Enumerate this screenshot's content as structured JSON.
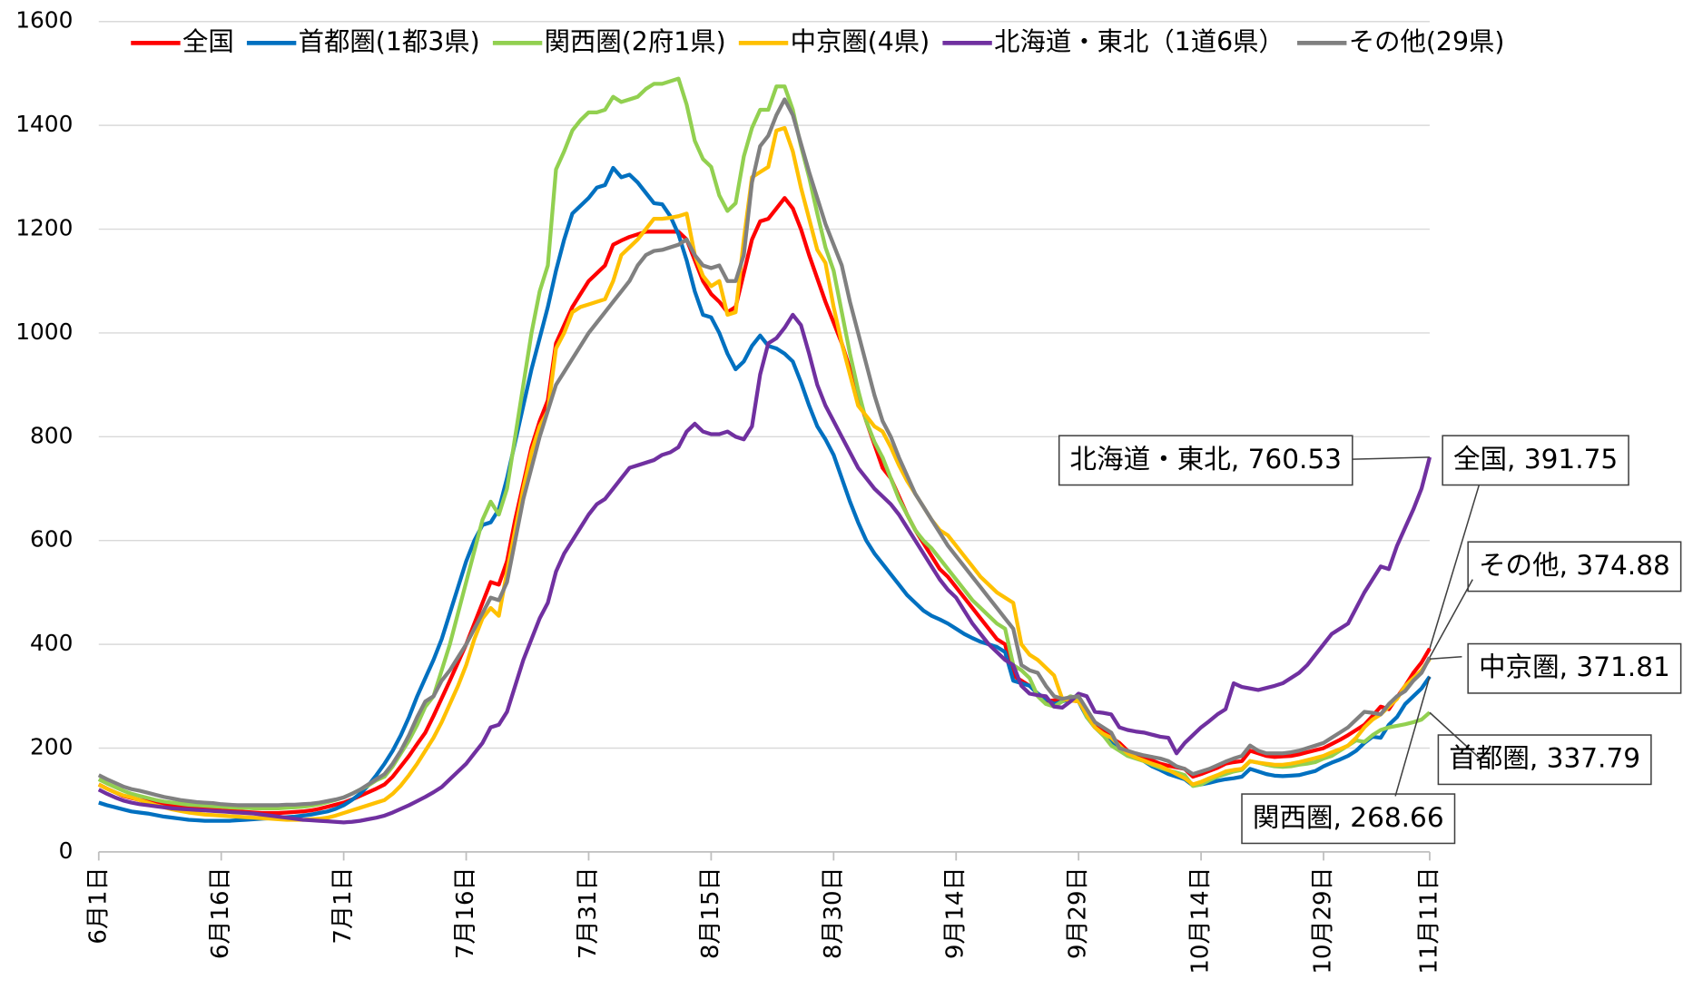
{
  "chart_data": {
    "type": "line",
    "categories": [
      "6月1日",
      null,
      null,
      null,
      null,
      null,
      null,
      null,
      null,
      null,
      null,
      null,
      null,
      null,
      null,
      "6月16日",
      null,
      null,
      null,
      null,
      null,
      null,
      null,
      null,
      null,
      null,
      null,
      null,
      null,
      null,
      "7月1日",
      null,
      null,
      null,
      null,
      null,
      null,
      null,
      null,
      null,
      null,
      null,
      null,
      null,
      null,
      "7月16日",
      null,
      null,
      null,
      null,
      null,
      null,
      null,
      null,
      null,
      null,
      null,
      null,
      null,
      null,
      "7月31日",
      null,
      null,
      null,
      null,
      null,
      null,
      null,
      null,
      null,
      null,
      null,
      null,
      null,
      null,
      "8月15日",
      null,
      null,
      null,
      null,
      null,
      null,
      null,
      null,
      null,
      null,
      null,
      null,
      null,
      null,
      "8月30日",
      null,
      null,
      null,
      null,
      null,
      null,
      null,
      null,
      null,
      null,
      null,
      null,
      null,
      null,
      "9月14日",
      null,
      null,
      null,
      null,
      null,
      null,
      null,
      null,
      null,
      null,
      null,
      null,
      null,
      null,
      "9月29日",
      null,
      null,
      null,
      null,
      null,
      null,
      null,
      null,
      null,
      null,
      null,
      null,
      null,
      null,
      "10月14日",
      null,
      null,
      null,
      null,
      null,
      null,
      null,
      null,
      null,
      null,
      null,
      null,
      null,
      null,
      "10月29日",
      null,
      null,
      null,
      null,
      null,
      null,
      null,
      null,
      null,
      null,
      null,
      null,
      "11月11日"
    ],
    "series": [
      {
        "name": "全国",
        "color": "#ff0000",
        "values": [
          130,
          122,
          115,
          108,
          104,
          100,
          97,
          94,
          92,
          90,
          88,
          86,
          85,
          84,
          82,
          80,
          79,
          78,
          77,
          76,
          75,
          75,
          75,
          76,
          77,
          78,
          80,
          83,
          87,
          91,
          95,
          101,
          108,
          115,
          122,
          130,
          145,
          165,
          185,
          208,
          230,
          262,
          296,
          330,
          365,
          400,
          440,
          480,
          520,
          515,
          560,
          640,
          710,
          780,
          830,
          870,
          980,
          1015,
          1050,
          1075,
          1100,
          1115,
          1130,
          1170,
          1178,
          1185,
          1190,
          1195,
          1195,
          1195,
          1195,
          1195,
          1180,
          1140,
          1100,
          1075,
          1060,
          1040,
          1050,
          1115,
          1180,
          1215,
          1220,
          1240,
          1260,
          1240,
          1200,
          1150,
          1105,
          1060,
          1020,
          980,
          930,
          880,
          830,
          785,
          740,
          720,
          685,
          650,
          620,
          595,
          570,
          545,
          530,
          510,
          490,
          470,
          450,
          430,
          410,
          400,
          340,
          330,
          320,
          305,
          290,
          292,
          295,
          292,
          290,
          270,
          250,
          235,
          220,
          210,
          195,
          188,
          182,
          176,
          170,
          166,
          163,
          160,
          145,
          150,
          156,
          162,
          170,
          173,
          175,
          195,
          190,
          185,
          183,
          184,
          185,
          188,
          192,
          196,
          200,
          208,
          216,
          225,
          235,
          245,
          262,
          280,
          275,
          298,
          320,
          345,
          365,
          391.75
        ]
      },
      {
        "name": "首都圏(1都3県)",
        "color": "#0070c0",
        "values": [
          95,
          90,
          86,
          82,
          78,
          76,
          74,
          71,
          68,
          66,
          64,
          62,
          61,
          60,
          60,
          60,
          60,
          61,
          62,
          63,
          64,
          65,
          66,
          67,
          68,
          70,
          72,
          75,
          78,
          83,
          90,
          100,
          112,
          128,
          148,
          170,
          195,
          225,
          260,
          300,
          335,
          370,
          410,
          460,
          510,
          560,
          600,
          630,
          635,
          660,
          720,
          790,
          860,
          930,
          990,
          1050,
          1120,
          1180,
          1230,
          1245,
          1260,
          1280,
          1285,
          1318,
          1300,
          1305,
          1290,
          1270,
          1250,
          1248,
          1225,
          1190,
          1140,
          1080,
          1035,
          1030,
          1000,
          960,
          930,
          945,
          975,
          995,
          975,
          970,
          960,
          945,
          905,
          860,
          820,
          795,
          765,
          720,
          675,
          635,
          600,
          575,
          555,
          535,
          515,
          495,
          480,
          465,
          455,
          448,
          440,
          430,
          420,
          412,
          405,
          400,
          395,
          385,
          330,
          325,
          320,
          305,
          295,
          285,
          290,
          295,
          290,
          260,
          240,
          225,
          212,
          200,
          190,
          182,
          175,
          165,
          158,
          150,
          145,
          140,
          128,
          130,
          133,
          137,
          140,
          142,
          145,
          160,
          155,
          150,
          147,
          146,
          147,
          148,
          152,
          156,
          165,
          172,
          178,
          185,
          195,
          210,
          222,
          220,
          245,
          260,
          285,
          300,
          315,
          337.79
        ]
      },
      {
        "name": "関西圏(2府1県)",
        "color": "#92d050",
        "values": [
          140,
          132,
          125,
          118,
          112,
          108,
          104,
          100,
          97,
          95,
          93,
          91,
          90,
          89,
          88,
          87,
          86,
          85,
          85,
          84,
          84,
          84,
          84,
          85,
          86,
          87,
          89,
          92,
          96,
          100,
          105,
          112,
          120,
          128,
          138,
          145,
          165,
          190,
          215,
          245,
          280,
          300,
          350,
          400,
          460,
          520,
          580,
          640,
          675,
          650,
          700,
          800,
          900,
          1000,
          1080,
          1130,
          1315,
          1350,
          1390,
          1410,
          1425,
          1425,
          1430,
          1455,
          1445,
          1450,
          1455,
          1470,
          1480,
          1480,
          1485,
          1490,
          1440,
          1370,
          1335,
          1320,
          1265,
          1235,
          1250,
          1340,
          1395,
          1430,
          1430,
          1475,
          1475,
          1430,
          1360,
          1300,
          1230,
          1165,
          1120,
          1040,
          960,
          890,
          830,
          790,
          760,
          720,
          680,
          650,
          620,
          600,
          585,
          565,
          545,
          525,
          505,
          485,
          470,
          455,
          440,
          430,
          360,
          350,
          335,
          300,
          285,
          280,
          290,
          300,
          295,
          260,
          240,
          225,
          205,
          195,
          185,
          180,
          175,
          168,
          162,
          157,
          153,
          148,
          127,
          130,
          138,
          145,
          150,
          155,
          158,
          175,
          172,
          168,
          165,
          164,
          165,
          168,
          170,
          173,
          180,
          185,
          195,
          205,
          215,
          212,
          225,
          235,
          240,
          243,
          246,
          250,
          255,
          268.66
        ]
      },
      {
        "name": "中京圏(4県)",
        "color": "#ffc000",
        "values": [
          130,
          122,
          115,
          109,
          105,
          100,
          95,
          90,
          86,
          82,
          79,
          76,
          74,
          72,
          71,
          70,
          69,
          68,
          67,
          66,
          65,
          64,
          63,
          62,
          62,
          62,
          63,
          64,
          66,
          70,
          75,
          80,
          85,
          90,
          95,
          100,
          112,
          128,
          148,
          170,
          195,
          220,
          250,
          285,
          320,
          360,
          410,
          450,
          470,
          455,
          540,
          620,
          700,
          770,
          820,
          850,
          970,
          1000,
          1040,
          1050,
          1055,
          1060,
          1065,
          1100,
          1150,
          1165,
          1180,
          1200,
          1220,
          1220,
          1222,
          1225,
          1230,
          1150,
          1110,
          1090,
          1100,
          1035,
          1040,
          1180,
          1300,
          1310,
          1320,
          1390,
          1395,
          1350,
          1280,
          1220,
          1160,
          1135,
          1050,
          980,
          920,
          860,
          840,
          820,
          810,
          780,
          745,
          715,
          690,
          665,
          640,
          620,
          610,
          590,
          570,
          550,
          530,
          515,
          500,
          490,
          480,
          400,
          380,
          370,
          355,
          340,
          295,
          292,
          290,
          265,
          240,
          228,
          220,
          205,
          190,
          182,
          176,
          170,
          165,
          158,
          150,
          142,
          130,
          135,
          142,
          148,
          155,
          158,
          160,
          175,
          172,
          170,
          168,
          168,
          170,
          173,
          177,
          181,
          185,
          192,
          198,
          205,
          220,
          240,
          255,
          265,
          280,
          295,
          320,
          335,
          350,
          371.81
        ]
      },
      {
        "name": "北海道・東北（1道6県）",
        "color": "#7030a0",
        "values": [
          120,
          112,
          105,
          99,
          95,
          92,
          90,
          88,
          86,
          84,
          83,
          82,
          81,
          80,
          79,
          78,
          77,
          76,
          75,
          74,
          72,
          70,
          68,
          66,
          64,
          62,
          61,
          60,
          59,
          58,
          57,
          58,
          60,
          63,
          66,
          70,
          76,
          83,
          90,
          98,
          106,
          115,
          125,
          140,
          155,
          170,
          190,
          210,
          240,
          245,
          270,
          320,
          370,
          410,
          450,
          480,
          540,
          575,
          600,
          625,
          650,
          670,
          680,
          700,
          720,
          740,
          745,
          750,
          755,
          765,
          770,
          780,
          810,
          825,
          810,
          805,
          805,
          810,
          800,
          795,
          820,
          920,
          980,
          990,
          1010,
          1035,
          1015,
          960,
          900,
          860,
          830,
          800,
          770,
          740,
          720,
          700,
          685,
          670,
          650,
          625,
          600,
          575,
          550,
          525,
          505,
          490,
          465,
          440,
          420,
          400,
          385,
          370,
          360,
          320,
          305,
          302,
          300,
          280,
          278,
          290,
          305,
          300,
          270,
          268,
          265,
          240,
          235,
          232,
          230,
          226,
          222,
          220,
          190,
          210,
          225,
          240,
          252,
          265,
          275,
          325,
          318,
          315,
          312,
          316,
          320,
          325,
          335,
          345,
          360,
          380,
          400,
          420,
          430,
          440,
          470,
          500,
          525,
          550,
          545,
          590,
          625,
          660,
          700,
          760.53
        ]
      },
      {
        "name": "その他(29県)",
        "color": "#808080",
        "values": [
          148,
          140,
          133,
          126,
          121,
          118,
          114,
          110,
          106,
          103,
          100,
          98,
          96,
          95,
          94,
          92,
          91,
          90,
          90,
          90,
          90,
          90,
          90,
          91,
          91,
          92,
          93,
          95,
          98,
          101,
          105,
          112,
          120,
          130,
          140,
          150,
          170,
          195,
          225,
          260,
          290,
          300,
          330,
          350,
          375,
          400,
          430,
          460,
          490,
          485,
          520,
          600,
          680,
          740,
          800,
          850,
          900,
          925,
          950,
          975,
          1000,
          1020,
          1040,
          1060,
          1080,
          1100,
          1130,
          1150,
          1158,
          1160,
          1165,
          1170,
          1180,
          1150,
          1130,
          1125,
          1130,
          1100,
          1100,
          1150,
          1290,
          1360,
          1380,
          1420,
          1450,
          1420,
          1365,
          1310,
          1260,
          1210,
          1170,
          1130,
          1060,
          1000,
          940,
          880,
          830,
          800,
          760,
          725,
          690,
          665,
          640,
          615,
          590,
          570,
          550,
          530,
          510,
          490,
          470,
          450,
          430,
          360,
          350,
          345,
          320,
          300,
          295,
          298,
          300,
          275,
          250,
          240,
          230,
          200,
          195,
          190,
          186,
          183,
          180,
          175,
          165,
          160,
          150,
          155,
          160,
          167,
          174,
          180,
          185,
          205,
          195,
          190,
          190,
          190,
          192,
          195,
          200,
          205,
          210,
          220,
          230,
          240,
          255,
          270,
          268,
          265,
          285,
          300,
          310,
          330,
          345,
          374.88
        ]
      }
    ],
    "ylim": [
      0,
      1600
    ],
    "yticks": [
      0,
      200,
      400,
      600,
      800,
      1000,
      1200,
      1400,
      1600
    ],
    "grid": true,
    "legend": "top",
    "annotations": [
      {
        "text": "北海道・東北, 760.53"
      },
      {
        "text": "全国, 391.75"
      },
      {
        "text": "その他, 374.88"
      },
      {
        "text": "中京圏, 371.81"
      },
      {
        "text": "首都圏, 337.79"
      },
      {
        "text": "関西圏, 268.66"
      }
    ]
  }
}
